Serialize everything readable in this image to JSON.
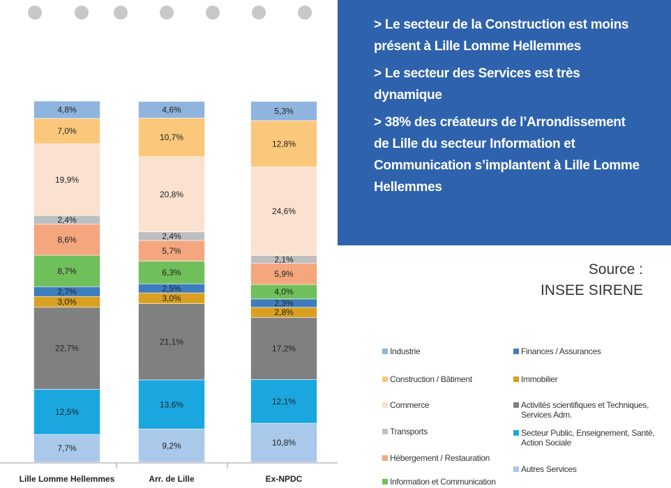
{
  "chart_data": {
    "type": "stacked_bar",
    "categories": [
      "Lille Lomme Hellemmes",
      "Arr. de Lille",
      "Ex-NPDC"
    ],
    "ylim": [
      0,
      100
    ],
    "series": [
      {
        "name": "Autres Services",
        "color": "#a9c8ea",
        "values": [
          7.7,
          9.2,
          10.8
        ],
        "value_labels": [
          "7,7%",
          "9,2%",
          "10,8%"
        ]
      },
      {
        "name": "Secteur Public, Enseignement, Santé, Action Sociale",
        "color": "#1aa7e0",
        "values": [
          12.5,
          13.6,
          12.1
        ],
        "value_labels": [
          "12,5%",
          "13,6%",
          "12,1%"
        ]
      },
      {
        "name": "Activités scientifiques et Techniques, Services Adm.",
        "color": "#808080",
        "values": [
          22.7,
          21.1,
          17.2
        ],
        "value_labels": [
          "22,7%",
          "21,1%",
          "17,2%"
        ]
      },
      {
        "name": "Immobilier",
        "color": "#d9a021",
        "values": [
          3.0,
          3.0,
          2.8
        ],
        "value_labels": [
          "3,0%",
          "3,0%",
          "2,8%"
        ]
      },
      {
        "name": "Finances / Assurances",
        "color": "#3d7dbf",
        "values": [
          2.7,
          2.5,
          2.3
        ],
        "value_labels": [
          "2,7%",
          "2,5%",
          "2,3%"
        ]
      },
      {
        "name": "Information et Communication",
        "color": "#6fc05a",
        "values": [
          8.7,
          6.3,
          4.0
        ],
        "value_labels": [
          "8,7%",
          "6,3%",
          "4,0%"
        ]
      },
      {
        "name": "Hébergement / Restauration",
        "color": "#f4a67f",
        "values": [
          8.6,
          5.7,
          5.9
        ],
        "value_labels": [
          "8,6%",
          "5,7%",
          "5,9%"
        ]
      },
      {
        "name": "Transports",
        "color": "#bfbfbf",
        "values": [
          2.4,
          2.4,
          2.1
        ],
        "value_labels": [
          "2,4%",
          "2,4%",
          "2,1%"
        ]
      },
      {
        "name": "Commerce",
        "color": "#fbe1cf",
        "values": [
          19.9,
          20.8,
          24.6
        ],
        "value_labels": [
          "19,9%",
          "20,8%",
          "24,6%"
        ]
      },
      {
        "name": "Construction / Bâtiment",
        "color": "#fbc77a",
        "values": [
          7.0,
          10.7,
          12.8
        ],
        "value_labels": [
          "7,0%",
          "10,7%",
          "12,8%"
        ]
      },
      {
        "name": "Industrie",
        "color": "#8fb4de",
        "values": [
          4.8,
          4.6,
          5.3
        ],
        "value_labels": [
          "4,8%",
          "4,6%",
          "5,3%"
        ]
      }
    ]
  },
  "panel": {
    "bullets": [
      "> Le secteur de la Construction est moins présent à Lille Lomme Hellemmes",
      "> Le secteur des Services est très dynamique",
      "> 38% des créateurs de l’Arrondissement de Lille du secteur Information et Communication s’implantent à Lille Lomme Hellemmes"
    ]
  },
  "source": {
    "label": "Source :",
    "text": "INSEE SIRENE"
  }
}
